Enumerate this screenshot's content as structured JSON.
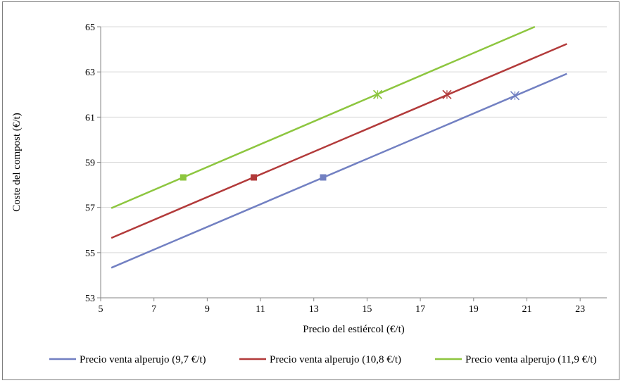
{
  "chart_data": {
    "type": "line",
    "title": "",
    "xlabel": "Precio del estiércol (€/t)",
    "ylabel": "Coste del compost (€/t)",
    "xlim": [
      5,
      24
    ],
    "ylim": [
      53,
      65
    ],
    "xticks": [
      5,
      7,
      9,
      11,
      13,
      15,
      17,
      19,
      21,
      23
    ],
    "yticks": [
      53,
      55,
      57,
      59,
      61,
      63,
      65
    ],
    "grid": "horizontal",
    "legend_position": "bottom",
    "series": [
      {
        "name": "Precio venta alperujo (9,7 €/t)",
        "color": "#7280c2",
        "line": [
          [
            5.4,
            54.33
          ],
          [
            22.5,
            62.92
          ]
        ],
        "square_marker": [
          13.35,
          58.33
        ],
        "x_marker": [
          20.55,
          61.95
        ]
      },
      {
        "name": "Precio venta alperujo (10,8 €/t)",
        "color": "#b23a3a",
        "line": [
          [
            5.4,
            55.65
          ],
          [
            22.5,
            64.24
          ]
        ],
        "square_marker": [
          10.75,
          58.33
        ],
        "x_marker": [
          18.0,
          62.0
        ]
      },
      {
        "name": "Precio venta alperujo (11,9 €/t)",
        "color": "#8dc63f",
        "line": [
          [
            5.4,
            56.97
          ],
          [
            21.3,
            65.0
          ]
        ],
        "square_marker": [
          8.1,
          58.33
        ],
        "x_marker": [
          15.4,
          62.0
        ]
      }
    ]
  }
}
